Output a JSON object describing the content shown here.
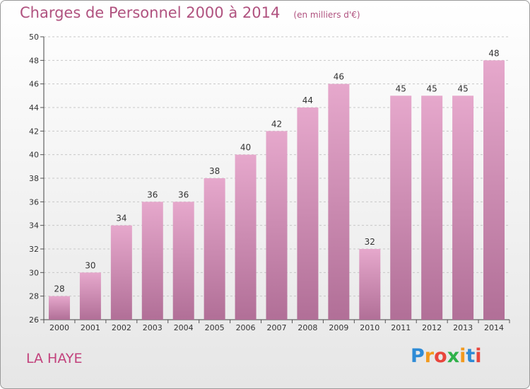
{
  "header": {
    "title": "Charges de Personnel 2000 à 2014",
    "subtitle": "(en milliers d'€)"
  },
  "footer": {
    "town": "LA HAYE",
    "logo": {
      "text": "Proxiti",
      "letter_colors": [
        "#2e8bd6",
        "#f29a1e",
        "#e8453c",
        "#2fb14a",
        "#f29a1e",
        "#2e8bd6",
        "#e8453c"
      ]
    }
  },
  "chart_data": {
    "type": "bar",
    "categories": [
      "2000",
      "2001",
      "2002",
      "2003",
      "2004",
      "2005",
      "2006",
      "2007",
      "2008",
      "2009",
      "2010",
      "2011",
      "2012",
      "2013",
      "2014"
    ],
    "values": [
      28,
      30,
      34,
      36,
      36,
      38,
      40,
      42,
      44,
      46,
      32,
      45,
      45,
      45,
      48
    ],
    "data_labels": [
      "28",
      "30",
      "34",
      "36",
      "36",
      "38",
      "40",
      "42",
      "44",
      "46",
      "32",
      "45",
      "45",
      "45",
      "48"
    ],
    "yticks": [
      26,
      28,
      30,
      32,
      34,
      36,
      38,
      40,
      42,
      44,
      46,
      48,
      50
    ],
    "ylim": [
      26,
      50
    ],
    "grid": true,
    "bar_color_top": "#e6a8cc",
    "bar_color_bottom": "#b16f97"
  }
}
